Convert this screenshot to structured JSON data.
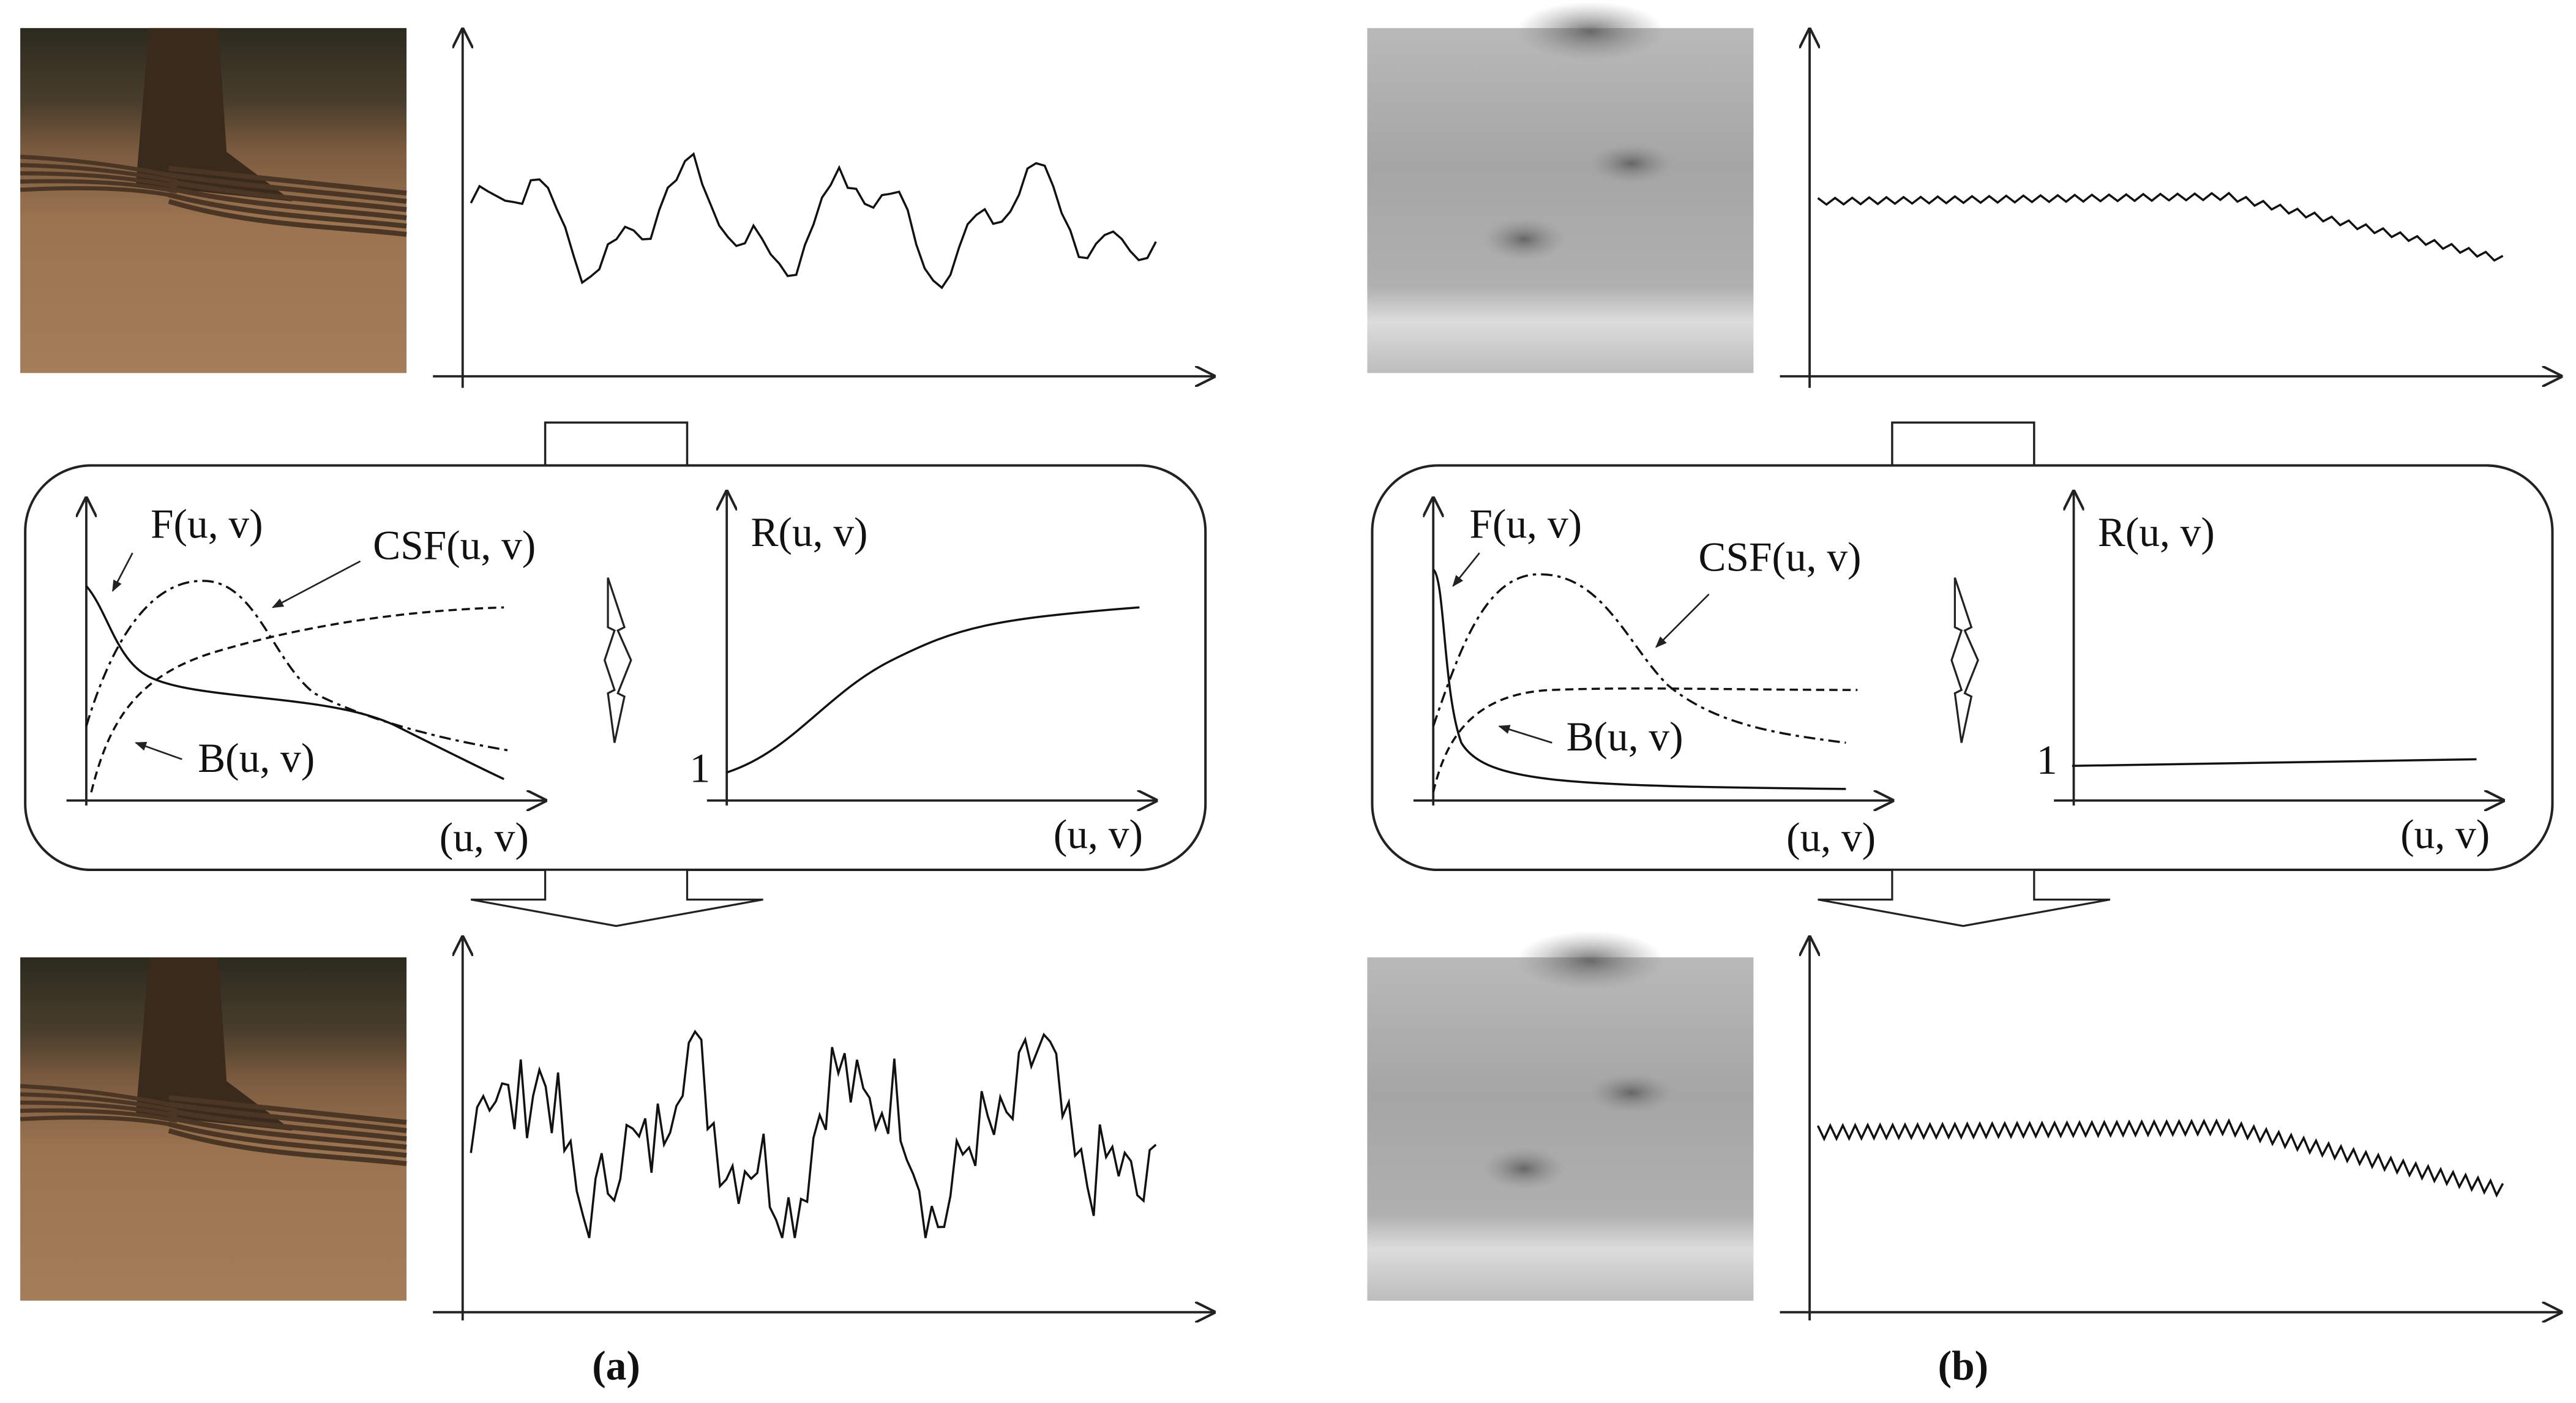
{
  "panels": [
    {
      "label": "(a)",
      "curve_labels": {
        "f": "F(u, v)",
        "csf": "CSF(u, v)",
        "b": "B(u, v)",
        "r": "R(u, v)"
      },
      "r_axis_tick": "1",
      "x_axis_labels": [
        "(u, v)",
        "(u, v)"
      ]
    },
    {
      "label": "(b)",
      "curve_labels": {
        "f": "F(u, v)",
        "csf": "CSF(u, v)",
        "b": "B(u, v)",
        "r": "R(u, v)"
      },
      "r_axis_tick": "1",
      "x_axis_labels": [
        "(u, v)",
        "(u, v)"
      ]
    }
  ]
}
